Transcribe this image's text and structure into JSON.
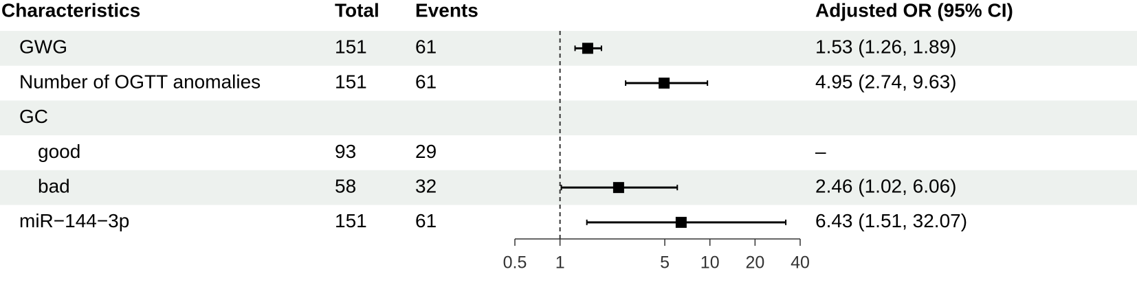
{
  "chart_data": {
    "type": "forest",
    "headers": {
      "label": "Characteristics",
      "total": "Total",
      "events": "Events",
      "estimate": "Adjusted OR (95% CI)"
    },
    "rows": [
      {
        "label": "GWG",
        "total": 151,
        "events": 61,
        "value": 1.53,
        "lower": 1.26,
        "upper": 1.89,
        "value_label": "1.53 (1.26, 1.89)"
      },
      {
        "label": "Number of OGTT anomalies",
        "total": 151,
        "events": 61,
        "value": 4.95,
        "lower": 2.74,
        "upper": 9.63,
        "value_label": "4.95 (2.74, 9.63)"
      },
      {
        "label": "GC"
      },
      {
        "label": "good",
        "level": 1,
        "total": 93,
        "events": 29,
        "value_label": "–"
      },
      {
        "label": "bad",
        "level": 1,
        "total": 58,
        "events": 32,
        "value": 2.46,
        "lower": 1.02,
        "upper": 6.06,
        "value_label": "2.46 (1.02, 6.06)"
      },
      {
        "label": "miR−144−3p",
        "total": 151,
        "events": 61,
        "value": 6.43,
        "lower": 1.51,
        "upper": 32.07,
        "value_label": "6.43 (1.51, 32.07)"
      }
    ],
    "xlim": [
      0.5,
      40
    ],
    "xticks": [
      0.5,
      1,
      5,
      10,
      20,
      40
    ],
    "log_scale": true,
    "reference_line": 1,
    "shading": "alternate",
    "shade_color": "#edf1ee",
    "color": "#000000"
  }
}
